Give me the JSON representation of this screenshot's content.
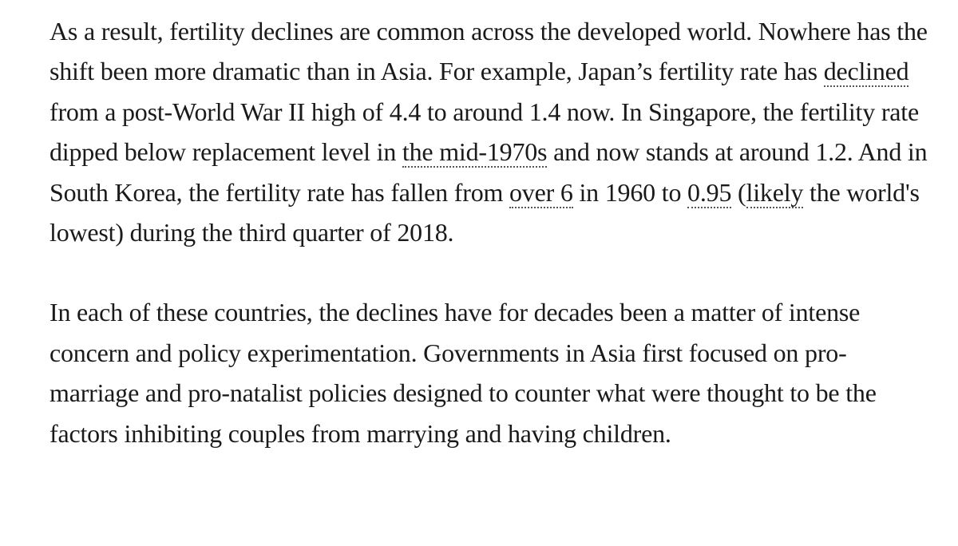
{
  "article": {
    "paragraph_1": {
      "t1": "As a result, fertility declines are common across the developed world. Nowhere has the shift been more dramatic than in Asia. For example, Japan’s fertility rate has ",
      "link_declined": "declined",
      "t2": " from a post-World War II high of 4.4 to around 1.4 now. In Singapore, the fertility rate dipped below replacement level in ",
      "link_mid_1970s": "the mid-1970s",
      "t3": " and now stands at around 1.2. And in South Korea, the fertility rate has fallen from ",
      "link_over_6": "over 6",
      "t4": " in 1960 to ",
      "link_0_95": "0.95",
      "t5": " (",
      "link_likely": "likely",
      "t6": " the world's lowest) during the third quarter of 2018."
    },
    "paragraph_2": {
      "text": "In each of these countries, the declines have for decades been a matter of intense concern and policy experimentation. Governments in Asia first focused on pro-marriage and pro-natalist policies designed to counter what were thought to be the factors inhibiting couples from marrying and having children."
    }
  }
}
